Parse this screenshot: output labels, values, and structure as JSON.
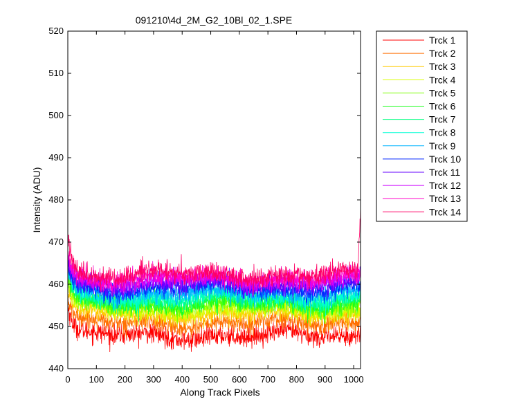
{
  "chart_data": {
    "type": "line",
    "title": "091210\\4d_2M_G2_10Bl_02_1.SPE",
    "xlabel": "Along Track Pixels",
    "ylabel": "Intensity (ADU)",
    "xlim": [
      0,
      1024
    ],
    "ylim": [
      440,
      520
    ],
    "xticks": [
      0,
      100,
      200,
      300,
      400,
      500,
      600,
      700,
      800,
      900,
      1000
    ],
    "yticks": [
      440,
      450,
      460,
      470,
      480,
      490,
      500,
      510,
      520
    ],
    "grid": false,
    "legend_position": "outside-top-right",
    "x_range": [
      1,
      1024
    ],
    "series": [
      {
        "name": "Trck 1",
        "color": "#ff0000",
        "level": 447.8,
        "noise": 1.2,
        "start": 454.5,
        "end": 449.0
      },
      {
        "name": "Trck 2",
        "color": "#ff6f00",
        "level": 450.8,
        "noise": 1.1,
        "start": 456.0,
        "end": 452.0
      },
      {
        "name": "Trck 3",
        "color": "#ffcc00",
        "level": 452.8,
        "noise": 1.1,
        "start": 458.0,
        "end": 454.0
      },
      {
        "name": "Trck 4",
        "color": "#d8ff00",
        "level": 453.8,
        "noise": 1.1,
        "start": 459.0,
        "end": 455.0
      },
      {
        "name": "Trck 5",
        "color": "#7aff00",
        "level": 454.8,
        "noise": 1.1,
        "start": 460.0,
        "end": 456.0
      },
      {
        "name": "Trck 6",
        "color": "#1aff1a",
        "level": 455.5,
        "noise": 1.1,
        "start": 461.0,
        "end": 457.0
      },
      {
        "name": "Trck 7",
        "color": "#00ff80",
        "level": 456.3,
        "noise": 1.1,
        "start": 462.0,
        "end": 457.5
      },
      {
        "name": "Trck 8",
        "color": "#00ffd5",
        "level": 457.0,
        "noise": 1.1,
        "start": 462.5,
        "end": 458.0
      },
      {
        "name": "Trck 9",
        "color": "#00b4ff",
        "level": 458.0,
        "noise": 1.1,
        "start": 463.0,
        "end": 459.0
      },
      {
        "name": "Trck 10",
        "color": "#0028ff",
        "level": 459.0,
        "noise": 1.1,
        "start": 464.0,
        "end": 460.0
      },
      {
        "name": "Trck 11",
        "color": "#6600ff",
        "level": 460.0,
        "noise": 1.1,
        "start": 465.0,
        "end": 461.0
      },
      {
        "name": "Trck 12",
        "color": "#cc00ff",
        "level": 460.8,
        "noise": 1.1,
        "start": 466.0,
        "end": 461.5
      },
      {
        "name": "Trck 13",
        "color": "#ff00cc",
        "level": 461.5,
        "noise": 1.1,
        "start": 468.0,
        "end": 462.0
      },
      {
        "name": "Trck 14",
        "color": "#ff0066",
        "level": 462.3,
        "noise": 1.2,
        "start": 472.0,
        "end": 476.0
      }
    ]
  }
}
